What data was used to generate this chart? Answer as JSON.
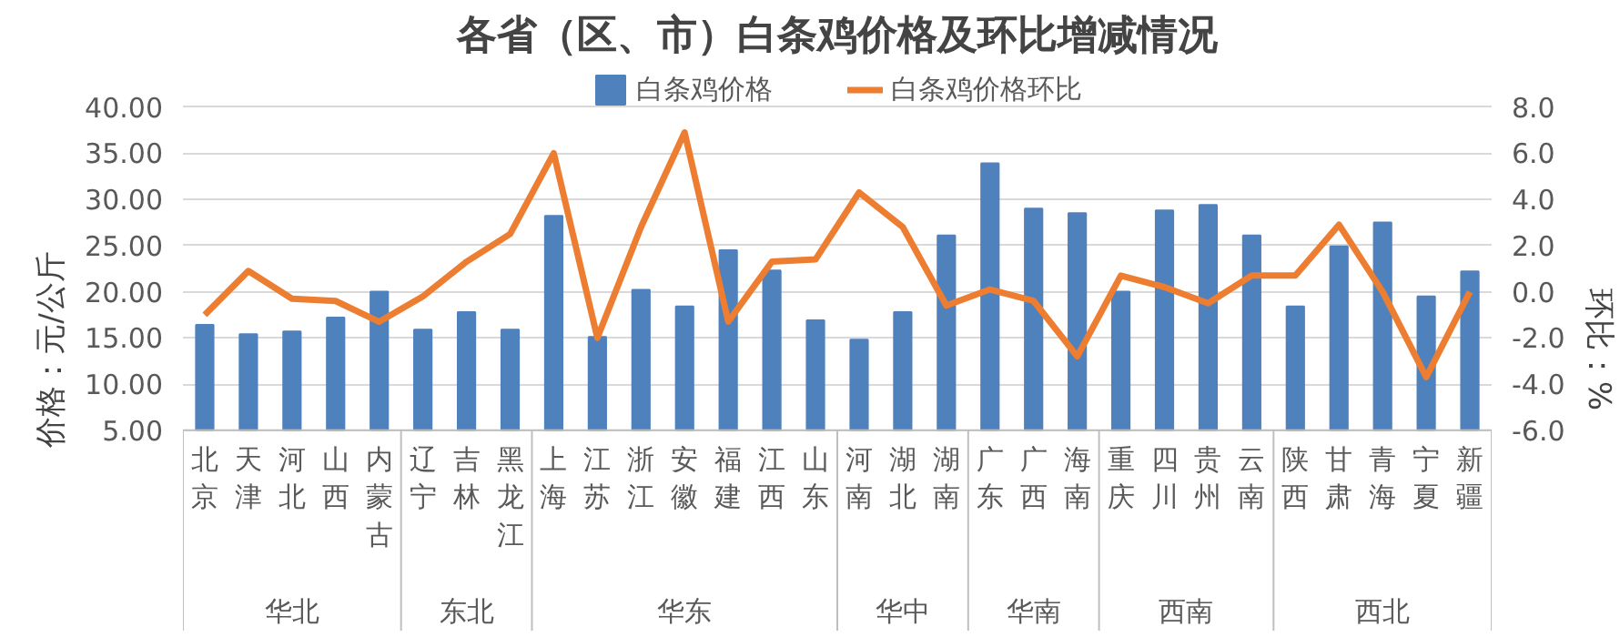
{
  "chart_data": {
    "type": "bar",
    "title": "各省（区、市）白条鸡价格及环比增减情况",
    "categories": [
      "北京",
      "天津",
      "河北",
      "山西",
      "内蒙古",
      "辽宁",
      "吉林",
      "黑龙江",
      "上海",
      "江苏",
      "浙江",
      "安徽",
      "福建",
      "江西",
      "山东",
      "河南",
      "湖北",
      "湖南",
      "广东",
      "广西",
      "海南",
      "重庆",
      "四川",
      "贵州",
      "云南",
      "陕西",
      "甘肃",
      "青海",
      "宁夏",
      "新疆"
    ],
    "series": [
      {
        "name": "白条鸡价格",
        "color": "#4f81bd",
        "values": [
          16.4,
          15.4,
          15.7,
          17.2,
          20.0,
          15.9,
          17.8,
          15.9,
          28.2,
          15.1,
          20.2,
          18.4,
          24.5,
          22.3,
          16.9,
          14.8,
          17.8,
          26.1,
          33.9,
          29.0,
          28.5,
          20.0,
          28.8,
          29.4,
          26.1,
          18.4,
          24.9,
          27.5,
          19.5,
          22.2
        ]
      },
      {
        "name": "白条鸡价格环比",
        "type": "line",
        "axis": "y2",
        "color": "#ed7d31",
        "values": [
          -1.0,
          0.9,
          -0.3,
          -0.4,
          -1.3,
          -0.2,
          1.3,
          2.5,
          6.0,
          -2.0,
          2.8,
          6.9,
          -1.3,
          1.3,
          1.4,
          4.3,
          2.8,
          -0.6,
          0.1,
          -0.4,
          -2.8,
          0.7,
          0.2,
          -0.5,
          0.7,
          0.7,
          2.9,
          0.0,
          -3.7,
          0.0
        ]
      }
    ],
    "ylim": [
      5,
      40
    ],
    "yticks": [
      {
        "value": 5,
        "label": "5.00"
      },
      {
        "value": 10,
        "label": "10.00"
      },
      {
        "value": 15,
        "label": "15.00"
      },
      {
        "value": 20,
        "label": "20.00"
      },
      {
        "value": 25,
        "label": "25.00"
      },
      {
        "value": 30,
        "label": "30.00"
      },
      {
        "value": 35,
        "label": "35.00"
      },
      {
        "value": 40,
        "label": "40.00"
      }
    ],
    "y2lim": [
      -6,
      8
    ],
    "y2ticks": [
      {
        "value": -6,
        "label": "-6.0"
      },
      {
        "value": -4,
        "label": "-4.0"
      },
      {
        "value": -2,
        "label": "-2.0"
      },
      {
        "value": 0,
        "label": "0.0"
      },
      {
        "value": 2,
        "label": "2.0"
      },
      {
        "value": 4,
        "label": "4.0"
      },
      {
        "value": 6,
        "label": "6.0"
      },
      {
        "value": 8,
        "label": "8.0"
      }
    ],
    "ylabel": "价格：元/公斤",
    "y2label": "环比：%",
    "annotations": [
      "华北",
      "东北",
      "华东",
      "华中",
      "华南",
      "西南",
      "西北"
    ],
    "grid": "y",
    "legend": "top"
  }
}
